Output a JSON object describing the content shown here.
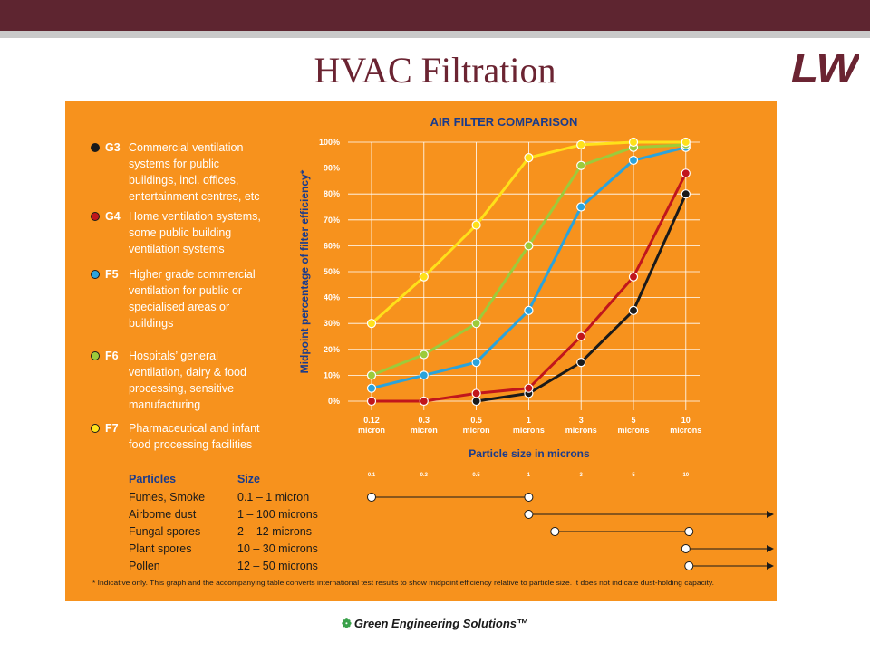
{
  "slide": {
    "title": "HVAC Filtration",
    "logo_text": "LW",
    "footer": "Green Engineering Solutions™",
    "footer_icon": "leaf-icon"
  },
  "legend": [
    {
      "code": "G3",
      "color": "#1a1a1a",
      "lines": [
        "Commercial ventilation",
        "systems for public",
        "buildings, incl. offices,",
        "entertainment centres, etc"
      ]
    },
    {
      "code": "G4",
      "color": "#c1161c",
      "lines": [
        "Home ventilation systems,",
        "some public building",
        "ventilation systems"
      ]
    },
    {
      "code": "F5",
      "color": "#2aa3dc",
      "lines": [
        "Higher grade commercial",
        "ventilation for public or",
        "specialised areas or",
        "buildings"
      ]
    },
    {
      "code": "F6",
      "color": "#9ccb3b",
      "lines": [
        "Hospitals’ general",
        "ventilation, dairy & food",
        "processing, sensitive",
        "manufacturing"
      ]
    },
    {
      "code": "F7",
      "color": "#ffe11a",
      "lines": [
        "Pharmaceutical and infant",
        "food processing facilities"
      ]
    }
  ],
  "chart_data": {
    "type": "line",
    "title": "AIR FILTER COMPARISON",
    "xlabel": "Particle size in microns",
    "ylabel": "Midpoint percentage of filter efficiency*",
    "ylim": [
      0,
      100
    ],
    "y_ticks": [
      "0%",
      "10%",
      "20%",
      "30%",
      "40%",
      "50%",
      "60%",
      "70%",
      "80%",
      "90%",
      "100%"
    ],
    "categories": [
      {
        "value": "0.12",
        "unit": "micron"
      },
      {
        "value": "0.3",
        "unit": "micron"
      },
      {
        "value": "0.5",
        "unit": "micron"
      },
      {
        "value": "1",
        "unit": "microns"
      },
      {
        "value": "3",
        "unit": "microns"
      },
      {
        "value": "5",
        "unit": "microns"
      },
      {
        "value": "10",
        "unit": "microns"
      }
    ],
    "grid": true,
    "legend_placement": "left",
    "series": [
      {
        "name": "G3",
        "color": "#1a1a1a",
        "values": [
          null,
          null,
          0,
          3,
          15,
          35,
          80
        ]
      },
      {
        "name": "G4",
        "color": "#c1161c",
        "values": [
          0,
          0,
          3,
          5,
          25,
          48,
          88
        ]
      },
      {
        "name": "F5",
        "color": "#2aa3dc",
        "values": [
          5,
          10,
          15,
          35,
          75,
          93,
          98
        ]
      },
      {
        "name": "F6",
        "color": "#9ccb3b",
        "values": [
          10,
          18,
          30,
          60,
          91,
          98,
          99
        ]
      },
      {
        "name": "F7",
        "color": "#ffe11a",
        "values": [
          30,
          48,
          68,
          94,
          99,
          100,
          100
        ]
      }
    ]
  },
  "particles_table": {
    "headers": [
      "Particles",
      "Size"
    ],
    "scale_ticks": [
      "0.1",
      "0.3",
      "0.5",
      "1",
      "3",
      "5",
      "10"
    ],
    "rows": [
      {
        "name": "Fumes, Smoke",
        "size": "0.1 – 1 micron",
        "from": 0.1,
        "to": 1,
        "open_end": false
      },
      {
        "name": "Airborne dust",
        "size": "1 – 100 microns",
        "from": 1,
        "to": 100,
        "open_end": true
      },
      {
        "name": "Fungal spores",
        "size": "2 – 12 microns",
        "from": 2,
        "to": 12,
        "open_end": false
      },
      {
        "name": "Plant spores",
        "size": "10 – 30 microns",
        "from": 10,
        "to": 30,
        "open_end": true
      },
      {
        "name": "Pollen",
        "size": "12 – 50 microns",
        "from": 12,
        "to": 50,
        "open_end": true
      }
    ]
  },
  "footnote": "* Indicative only. This graph and the accompanying table converts international test results to show midpoint efficiency relative to particle size. It does not indicate dust-holding capacity."
}
